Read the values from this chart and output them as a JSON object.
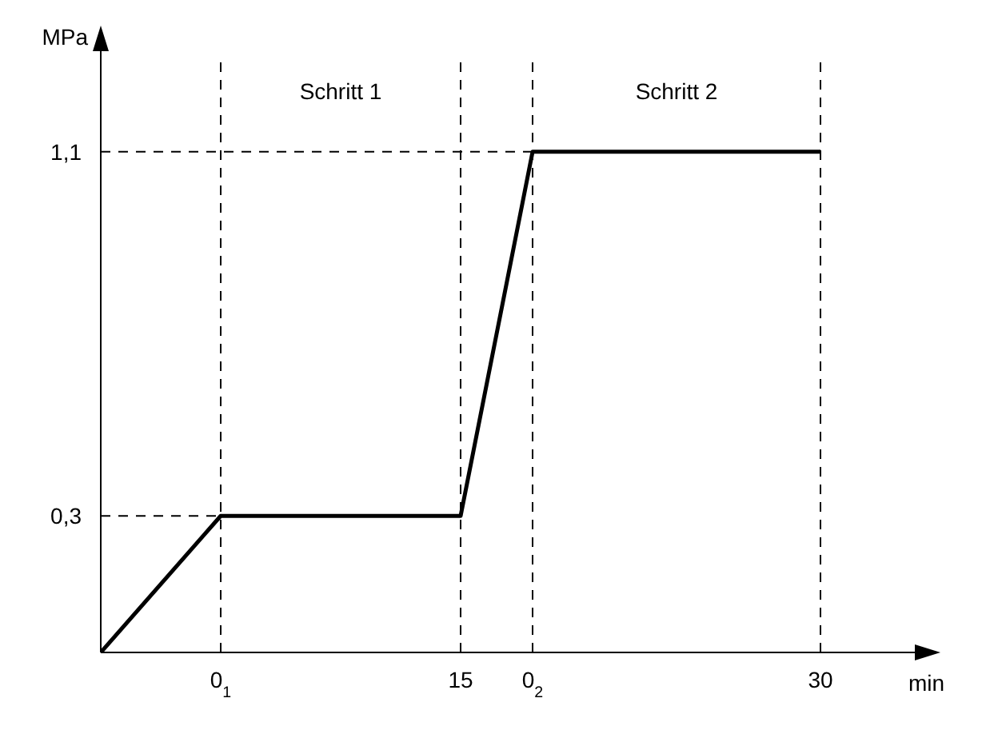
{
  "chart_data": {
    "type": "line",
    "xlabel": "min",
    "ylabel": "MPa",
    "x": [
      0,
      5,
      15,
      18,
      30
    ],
    "series": [
      {
        "color": "#000000",
        "values": [
          0,
          0.3,
          0.3,
          1.1,
          1.1
        ]
      }
    ],
    "xlim": [
      0,
      33
    ],
    "ylim": [
      0,
      1.3
    ],
    "xticks": [
      {
        "value": 5,
        "label": "0$_{1}$"
      },
      15,
      {
        "value": 18,
        "label": "0$_{2}$"
      },
      30
    ],
    "yticks": [
      {
        "value": 0.3,
        "label": "0,3"
      },
      {
        "value": 1.1,
        "label": "1,1"
      }
    ],
    "ref_lines": [
      {
        "axis": "x",
        "value": 5,
        "line_style": "dashed"
      },
      {
        "axis": "x",
        "value": 15,
        "line_style": "dashed"
      },
      {
        "axis": "x",
        "value": 18,
        "line_style": "dashed"
      },
      {
        "axis": "x",
        "value": 30,
        "line_style": "dashed"
      },
      {
        "axis": "y",
        "value": 0.3,
        "line_style": "dashed"
      },
      {
        "axis": "y",
        "value": 1.1,
        "line_style": "dashed"
      }
    ],
    "annotations": [
      "Schritt 1",
      "Schritt 2"
    ],
    "grid": false,
    "legend": false,
    "marker": "none",
    "line_style": "solid"
  }
}
